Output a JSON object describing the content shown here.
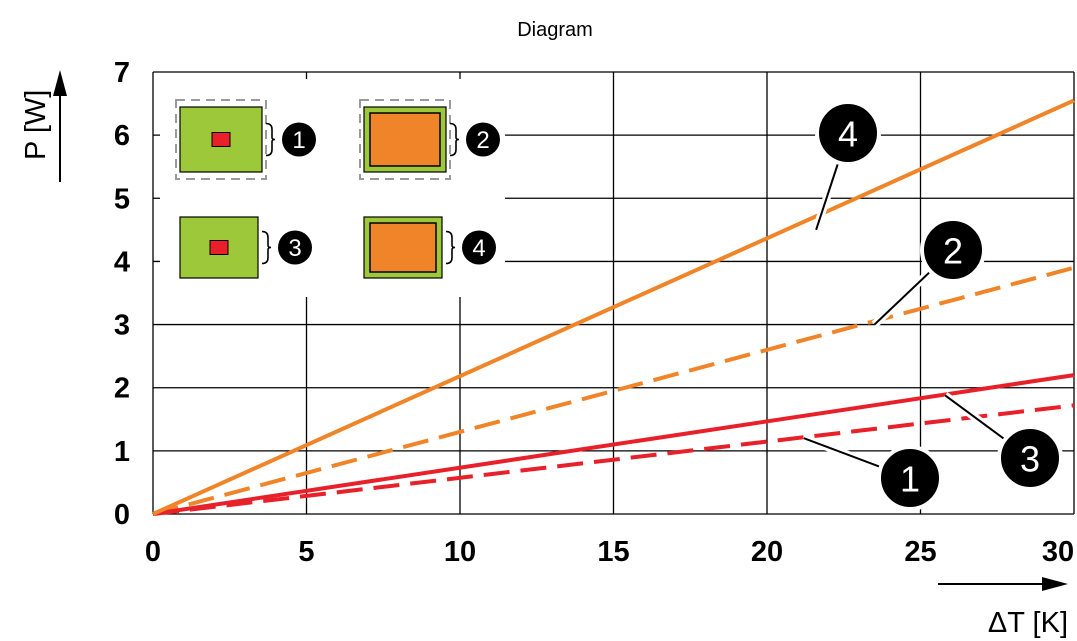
{
  "chart_data": {
    "type": "line",
    "title": "Diagram",
    "xlabel": "ΔT [K]",
    "ylabel": "P [W]",
    "xlim": [
      0,
      30
    ],
    "ylim": [
      0,
      7
    ],
    "x_ticks": [
      "0",
      "5",
      "10",
      "15",
      "20",
      "25",
      "30"
    ],
    "y_ticks": [
      "0",
      "1",
      "2",
      "3",
      "4",
      "5",
      "6",
      "7"
    ],
    "grid": true,
    "series": [
      {
        "name": "1",
        "style": "dashed",
        "color": "#e8202a",
        "x": [
          0,
          30
        ],
        "y": [
          0,
          1.72
        ]
      },
      {
        "name": "2",
        "style": "dashed",
        "color": "#f08428",
        "x": [
          0,
          30
        ],
        "y": [
          0,
          3.9
        ]
      },
      {
        "name": "3",
        "style": "solid",
        "color": "#e8202a",
        "x": [
          0,
          30
        ],
        "y": [
          0,
          2.2
        ]
      },
      {
        "name": "4",
        "style": "solid",
        "color": "#f08428",
        "x": [
          0,
          30
        ],
        "y": [
          0,
          6.55
        ]
      }
    ],
    "callouts": [
      {
        "label": "4",
        "tip": [
          21.6,
          4.5
        ]
      },
      {
        "label": "2",
        "tip": [
          23.5,
          3.0
        ]
      },
      {
        "label": "3",
        "tip": [
          25.8,
          1.88
        ]
      },
      {
        "label": "1",
        "tip": [
          21.2,
          1.2
        ]
      }
    ],
    "legend": {
      "placement": "top-left",
      "items": [
        {
          "label": "1",
          "chip": "small",
          "housing": true
        },
        {
          "label": "2",
          "chip": "large",
          "housing": true
        },
        {
          "label": "3",
          "chip": "small",
          "housing": false
        },
        {
          "label": "4",
          "chip": "large",
          "housing": false
        }
      ]
    },
    "colors": {
      "orange": "#f08428",
      "red": "#e8202a",
      "board_green": "#9dc83a",
      "grid": "#000000"
    }
  }
}
